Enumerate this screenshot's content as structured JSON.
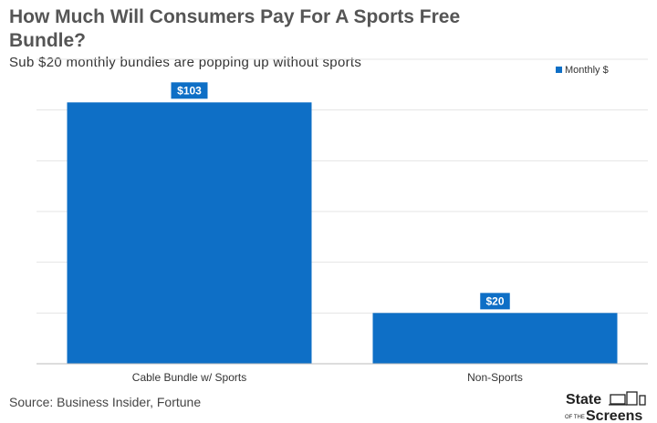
{
  "title": "How Much Will Consumers Pay For A Sports Free Bundle?",
  "subtitle": "Sub $20 monthly bundles are popping up without sports",
  "source": "Source: Business Insider, Fortune",
  "logo": {
    "line1": "State",
    "small": "OF THE",
    "line2": "Screens"
  },
  "colors": {
    "bar": "#0E6FC6",
    "label_bg": "#0E6FC6",
    "grid": "#e4e4e4",
    "title": "#555555"
  },
  "chart_data": {
    "type": "bar",
    "categories": [
      "Cable Bundle w/ Sports",
      "Non-Sports"
    ],
    "series": [
      {
        "name": "Monthly $",
        "values": [
          103,
          20
        ]
      }
    ],
    "data_labels": [
      "$103",
      "$20"
    ],
    "ylim": [
      0,
      120
    ],
    "grid": true,
    "legend": "top-right",
    "xlabel": "",
    "ylabel": ""
  }
}
